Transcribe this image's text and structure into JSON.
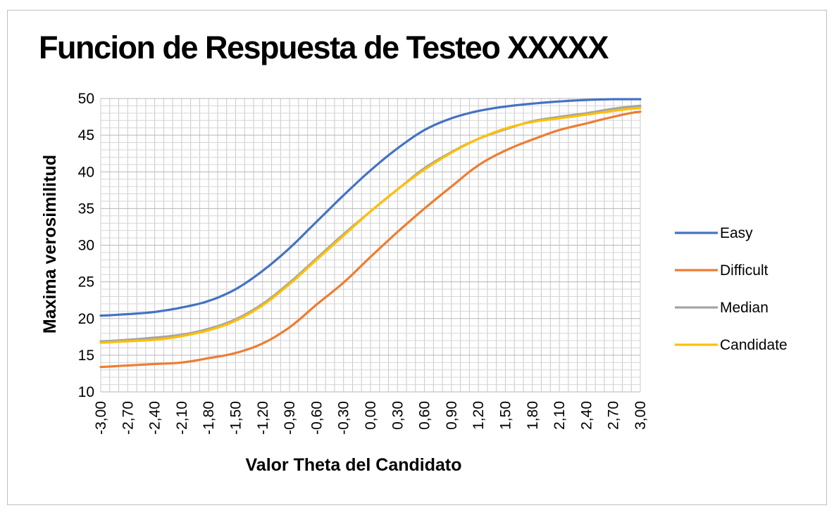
{
  "chart_data": {
    "type": "line",
    "title": "Funcion de Respuesta de Testeo  XXXXX",
    "xlabel": "Valor Theta del Candidato",
    "ylabel": "Maxima verosimilitud",
    "xlim": [
      -3.0,
      3.0
    ],
    "ylim": [
      10,
      50
    ],
    "y_ticks": [
      "10",
      "15",
      "20",
      "25",
      "30",
      "35",
      "40",
      "45",
      "50"
    ],
    "x_tick_labels": [
      "-3,00",
      "-2,70",
      "-2,40",
      "-2,10",
      "-1,80",
      "-1,50",
      "-1,20",
      "-0,90",
      "-0,60",
      "-0,30",
      "0,00",
      "0,30",
      "0,60",
      "0,90",
      "1,20",
      "1,50",
      "1,80",
      "2,10",
      "2,40",
      "2,70",
      "3,00"
    ],
    "grid": true,
    "legend_position": "right",
    "x": [
      -3.0,
      -2.7,
      -2.4,
      -2.1,
      -1.8,
      -1.5,
      -1.2,
      -0.9,
      -0.6,
      -0.3,
      0.0,
      0.3,
      0.6,
      0.9,
      1.2,
      1.5,
      1.8,
      2.1,
      2.4,
      2.7,
      3.0
    ],
    "series": [
      {
        "name": "Easy",
        "color": "#4472C4",
        "values": [
          20.4,
          20.6,
          20.9,
          21.5,
          22.4,
          24.0,
          26.5,
          29.6,
          33.2,
          36.8,
          40.2,
          43.2,
          45.7,
          47.3,
          48.3,
          48.9,
          49.3,
          49.6,
          49.8,
          49.9,
          49.9
        ]
      },
      {
        "name": "Difficult",
        "color": "#ED7D31",
        "values": [
          13.4,
          13.6,
          13.8,
          14.0,
          14.6,
          15.3,
          16.6,
          18.8,
          21.9,
          24.9,
          28.4,
          31.8,
          35.0,
          38.0,
          40.9,
          42.9,
          44.4,
          45.7,
          46.6,
          47.5,
          48.2
        ]
      },
      {
        "name": "Median",
        "color": "#A5A5A5",
        "values": [
          16.9,
          17.1,
          17.4,
          17.8,
          18.6,
          19.9,
          22.0,
          24.9,
          28.2,
          31.5,
          34.6,
          37.6,
          40.5,
          42.7,
          44.5,
          45.8,
          46.9,
          47.5,
          48.0,
          48.6,
          49.0
        ]
      },
      {
        "name": "Candidate",
        "color": "#FFC000",
        "values": [
          16.7,
          16.9,
          17.1,
          17.6,
          18.4,
          19.7,
          21.8,
          24.7,
          28.0,
          31.3,
          34.6,
          37.6,
          40.3,
          42.6,
          44.5,
          45.9,
          46.8,
          47.3,
          47.8,
          48.3,
          48.7
        ]
      }
    ]
  }
}
